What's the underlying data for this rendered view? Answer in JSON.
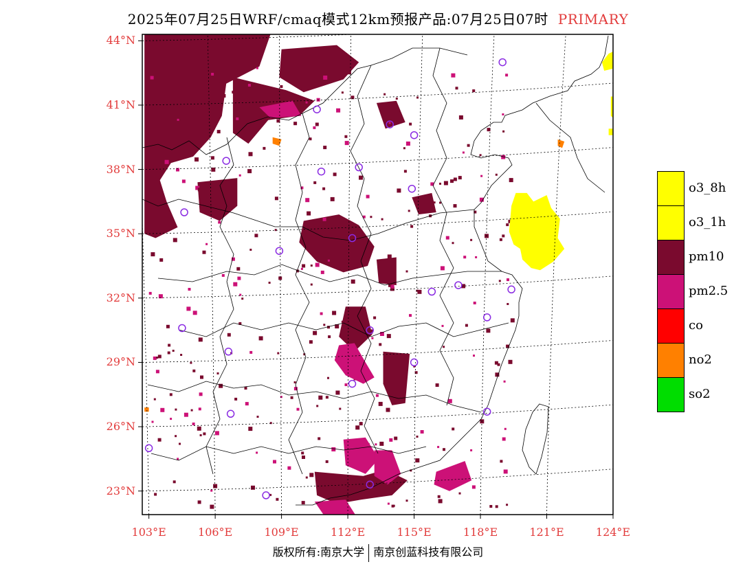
{
  "header": {
    "title": "2025年07月25日WRF/cmaq模式12km预报产品:07月25日07时",
    "product": "PRIMARY"
  },
  "map": {
    "lon_range": [
      102.7,
      124
    ],
    "lat_range": [
      21.9,
      44.3
    ],
    "lat_ticks": [
      {
        "value": 44,
        "label": "44°N"
      },
      {
        "value": 41,
        "label": "41°N"
      },
      {
        "value": 38,
        "label": "38°N"
      },
      {
        "value": 35,
        "label": "35°N"
      },
      {
        "value": 32,
        "label": "32°N"
      },
      {
        "value": 29,
        "label": "29°N"
      },
      {
        "value": 26,
        "label": "26°N"
      },
      {
        "value": 23,
        "label": "23°N"
      }
    ],
    "lon_ticks": [
      {
        "value": 103,
        "label": "103°E"
      },
      {
        "value": 106,
        "label": "106°E"
      },
      {
        "value": 109,
        "label": "109°E"
      },
      {
        "value": 112,
        "label": "112°E"
      },
      {
        "value": 115,
        "label": "115°E"
      },
      {
        "value": 118,
        "label": "118°E"
      },
      {
        "value": 121,
        "label": "121°E"
      },
      {
        "value": 124,
        "label": "124°E"
      }
    ],
    "colors": {
      "pm10": "#7a0a2e",
      "pm25": "#cc1177",
      "o3": "#ffff00",
      "no2": "#ff8000",
      "station": "#8a2be2"
    },
    "stations": [
      [
        119.0,
        43.0
      ],
      [
        110.6,
        40.8
      ],
      [
        113.9,
        40.1
      ],
      [
        115.0,
        39.6
      ],
      [
        106.5,
        38.4
      ],
      [
        112.5,
        38.1
      ],
      [
        110.8,
        37.9
      ],
      [
        114.9,
        37.1
      ],
      [
        104.6,
        36.0
      ],
      [
        112.2,
        34.8
      ],
      [
        108.9,
        34.2
      ],
      [
        117.0,
        32.6
      ],
      [
        115.8,
        32.3
      ],
      [
        119.4,
        32.4
      ],
      [
        118.3,
        31.1
      ],
      [
        104.5,
        30.6
      ],
      [
        113.0,
        30.5
      ],
      [
        106.6,
        29.5
      ],
      [
        115.0,
        29.0
      ],
      [
        112.2,
        28.0
      ],
      [
        118.3,
        26.7
      ],
      [
        106.7,
        26.6
      ],
      [
        103.0,
        25.0
      ],
      [
        108.3,
        22.8
      ],
      [
        113.0,
        23.3
      ]
    ],
    "pm10_regions": [
      [
        [
          102.8,
          44.3
        ],
        [
          108.5,
          44.3
        ],
        [
          108.0,
          42.8
        ],
        [
          106.5,
          42.0
        ],
        [
          106.3,
          40.5
        ],
        [
          105.8,
          39.5
        ],
        [
          105.0,
          38.6
        ],
        [
          104.0,
          38.3
        ],
        [
          103.5,
          37.5
        ],
        [
          103.8,
          36.5
        ],
        [
          104.3,
          35.3
        ],
        [
          103.3,
          34.8
        ],
        [
          102.8,
          35.0
        ]
      ],
      [
        [
          109.0,
          43.6
        ],
        [
          111.5,
          43.8
        ],
        [
          112.5,
          43.0
        ],
        [
          111.8,
          42.2
        ],
        [
          110.0,
          41.6
        ],
        [
          108.9,
          42.3
        ]
      ],
      [
        [
          106.8,
          42.3
        ],
        [
          109.2,
          41.7
        ],
        [
          110.5,
          41.2
        ],
        [
          109.8,
          40.5
        ],
        [
          108.4,
          40.3
        ],
        [
          107.5,
          39.2
        ],
        [
          106.8,
          39.7
        ]
      ],
      [
        [
          105.2,
          37.4
        ],
        [
          107.0,
          37.6
        ],
        [
          107.0,
          36.3
        ],
        [
          106.2,
          35.6
        ],
        [
          105.3,
          36.0
        ]
      ],
      [
        [
          110.0,
          35.6
        ],
        [
          111.6,
          35.9
        ],
        [
          112.5,
          35.4
        ],
        [
          113.2,
          34.4
        ],
        [
          112.9,
          33.5
        ],
        [
          111.8,
          33.2
        ],
        [
          110.6,
          33.7
        ],
        [
          109.8,
          34.6
        ]
      ],
      [
        [
          111.9,
          31.6
        ],
        [
          112.8,
          31.6
        ],
        [
          113.1,
          30.3
        ],
        [
          112.3,
          29.5
        ],
        [
          111.6,
          30.2
        ]
      ],
      [
        [
          113.3,
          33.8
        ],
        [
          114.2,
          33.9
        ],
        [
          114.2,
          32.6
        ],
        [
          113.4,
          32.7
        ]
      ],
      [
        [
          113.6,
          29.5
        ],
        [
          114.8,
          29.4
        ],
        [
          114.6,
          27.1
        ],
        [
          114.0,
          27.0
        ],
        [
          113.6,
          28.0
        ]
      ],
      [
        [
          110.5,
          23.9
        ],
        [
          112.7,
          23.7
        ],
        [
          113.7,
          24.0
        ],
        [
          114.7,
          23.5
        ],
        [
          114.0,
          22.8
        ],
        [
          112.6,
          22.6
        ],
        [
          111.5,
          22.4
        ],
        [
          110.6,
          22.8
        ]
      ],
      [
        [
          114.9,
          36.7
        ],
        [
          115.8,
          36.9
        ],
        [
          116.0,
          36.0
        ],
        [
          115.2,
          35.9
        ]
      ],
      [
        [
          113.3,
          41.1
        ],
        [
          114.2,
          41.2
        ],
        [
          114.6,
          40.2
        ],
        [
          113.7,
          39.9
        ]
      ]
    ],
    "pm25_regions": [
      [
        [
          111.6,
          29.8
        ],
        [
          112.3,
          29.9
        ],
        [
          112.8,
          29.0
        ],
        [
          113.2,
          28.3
        ],
        [
          112.7,
          28.0
        ],
        [
          111.9,
          28.4
        ],
        [
          111.4,
          29.1
        ]
      ],
      [
        [
          111.8,
          25.4
        ],
        [
          112.8,
          25.5
        ],
        [
          113.4,
          24.5
        ],
        [
          112.8,
          23.8
        ],
        [
          111.9,
          24.2
        ]
      ],
      [
        [
          113.2,
          24.9
        ],
        [
          114.0,
          24.9
        ],
        [
          114.4,
          23.8
        ],
        [
          113.8,
          23.3
        ],
        [
          113.2,
          23.7
        ]
      ],
      [
        [
          116.0,
          23.9
        ],
        [
          117.3,
          24.4
        ],
        [
          117.6,
          23.5
        ],
        [
          116.6,
          23.0
        ],
        [
          115.9,
          23.3
        ]
      ],
      [
        [
          110.5,
          22.5
        ],
        [
          111.9,
          22.6
        ],
        [
          112.4,
          21.8
        ],
        [
          110.9,
          21.9
        ]
      ],
      [
        [
          108.0,
          40.9
        ],
        [
          109.5,
          41.2
        ],
        [
          109.9,
          40.5
        ],
        [
          108.5,
          40.4
        ]
      ]
    ],
    "o3_regions": [
      [
        [
          119.4,
          36.3
        ],
        [
          119.6,
          36.9
        ],
        [
          120.1,
          36.9
        ],
        [
          120.4,
          36.5
        ],
        [
          121.0,
          36.8
        ],
        [
          121.2,
          36.2
        ],
        [
          121.6,
          35.7
        ],
        [
          121.5,
          34.8
        ],
        [
          121.8,
          34.3
        ],
        [
          121.3,
          33.7
        ],
        [
          120.7,
          33.3
        ],
        [
          120.3,
          33.4
        ],
        [
          119.9,
          33.8
        ],
        [
          119.8,
          34.3
        ],
        [
          119.5,
          34.5
        ],
        [
          119.3,
          35.1
        ]
      ],
      [
        [
          123.8,
          43.4
        ],
        [
          124.0,
          43.5
        ],
        [
          124.0,
          42.7
        ],
        [
          123.6,
          42.6
        ],
        [
          123.5,
          43.0
        ]
      ],
      [
        [
          123.9,
          41.4
        ],
        [
          124.0,
          41.4
        ],
        [
          124.0,
          40.4
        ],
        [
          123.9,
          40.5
        ]
      ],
      [
        [
          123.8,
          39.9
        ],
        [
          124.0,
          39.9
        ],
        [
          124.0,
          39.6
        ],
        [
          123.8,
          39.6
        ]
      ]
    ],
    "no2_regions": [
      [
        [
          108.6,
          39.5
        ],
        [
          109.0,
          39.4
        ],
        [
          108.9,
          39.1
        ],
        [
          108.6,
          39.2
        ]
      ],
      [
        [
          102.8,
          26.9
        ],
        [
          103.0,
          26.9
        ],
        [
          103.0,
          26.7
        ],
        [
          102.8,
          26.7
        ]
      ],
      [
        [
          121.5,
          39.4
        ],
        [
          121.8,
          39.3
        ],
        [
          121.7,
          39.0
        ],
        [
          121.5,
          39.1
        ]
      ]
    ]
  },
  "legend": {
    "items": [
      {
        "label": "o3_8h",
        "color": "#ffff00"
      },
      {
        "label": "o3_1h",
        "color": "#ffff00"
      },
      {
        "label": "pm10",
        "color": "#7a0a2e"
      },
      {
        "label": "pm2.5",
        "color": "#cc1177"
      },
      {
        "label": "co",
        "color": "#ff0000"
      },
      {
        "label": "no2",
        "color": "#ff8000"
      },
      {
        "label": "so2",
        "color": "#00dd00"
      }
    ]
  },
  "footer": {
    "left": "版权所有:南京大学",
    "right": "南京创蓝科技有限公司"
  }
}
